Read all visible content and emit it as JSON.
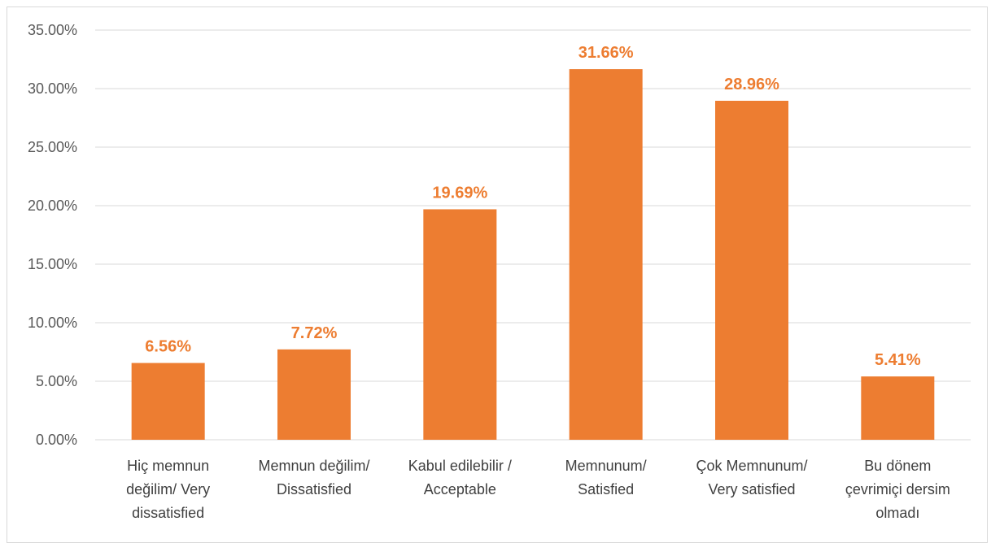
{
  "chart_data": {
    "type": "bar",
    "categories": [
      [
        "Hiç memnun",
        "değilim/ Very",
        "dissatisfied"
      ],
      [
        "Memnun değilim/",
        "Dissatisfied"
      ],
      [
        "Kabul edilebilir /",
        "Acceptable"
      ],
      [
        "Memnunum/",
        "Satisfied"
      ],
      [
        "Çok Memnunum/",
        "Very satisfied"
      ],
      [
        "Bu dönem",
        "çevrimiçi dersim",
        "olmadı"
      ]
    ],
    "values": [
      6.56,
      7.72,
      19.69,
      31.66,
      28.96,
      5.41
    ],
    "data_labels": [
      "6.56%",
      "7.72%",
      "19.69%",
      "31.66%",
      "28.96%",
      "5.41%"
    ],
    "yticks": [
      "0.00%",
      "5.00%",
      "10.00%",
      "15.00%",
      "20.00%",
      "25.00%",
      "30.00%",
      "35.00%"
    ],
    "ylim": [
      0,
      35
    ],
    "grid": true,
    "title": "",
    "xlabel": "",
    "ylabel": "",
    "colors": {
      "bar": "#ED7D31",
      "label": "#ED7D31",
      "grid": "#D9D9D9"
    }
  }
}
